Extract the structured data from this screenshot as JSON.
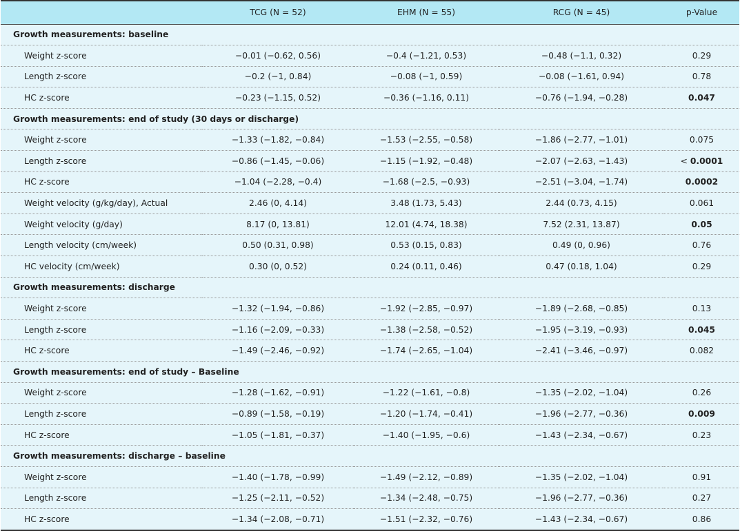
{
  "header": {
    "label": "",
    "tcg": "TCG (N = 52)",
    "ehm": "EHM (N = 55)",
    "rcg": "RCG (N = 45)",
    "p": "p-Value"
  },
  "sections": [
    {
      "title": "Growth measurements: baseline",
      "rows": [
        {
          "label": "Weight z-score",
          "tcg": "−0.01 (−0.62, 0.56)",
          "ehm": "−0.4 (−1.21, 0.53)",
          "rcg": "−0.48 (−1.1, 0.32)",
          "p": "0.29",
          "bold": false
        },
        {
          "label": "Length z-score",
          "tcg": "−0.2 (−1, 0.84)",
          "ehm": "−0.08 (−1, 0.59)",
          "rcg": "−0.08 (−1.61, 0.94)",
          "p": "0.78",
          "bold": false
        },
        {
          "label": "HC z-score",
          "tcg": "−0.23 (−1.15, 0.52)",
          "ehm": "−0.36 (−1.16, 0.11)",
          "rcg": "−0.76 (−1.94, −0.28)",
          "p": "0.047",
          "bold": true
        }
      ]
    },
    {
      "title": "Growth measurements: end of study (30 days or discharge)",
      "rows": [
        {
          "label": "Weight z-score",
          "tcg": "−1.33 (−1.82, −0.84)",
          "ehm": "−1.53 (−2.55, −0.58)",
          "rcg": "−1.86 (−2.77, −1.01)",
          "p": "0.075",
          "bold": false
        },
        {
          "label": "Length z-score",
          "tcg": "−0.86 (−1.45, −0.06)",
          "ehm": "−1.15 (−1.92, −0.48)",
          "rcg": "−2.07 (−2.63, −1.43)",
          "p_prefix": "< ",
          "p": "0.0001",
          "bold": true
        },
        {
          "label": "HC z-score",
          "tcg": "−1.04 (−2.28, −0.4)",
          "ehm": "−1.68 (−2.5, −0.93)",
          "rcg": "−2.51 (−3.04, −1.74)",
          "p": "0.0002",
          "bold": true
        },
        {
          "label": "Weight velocity (g/kg/day), Actual",
          "tcg": "2.46 (0, 4.14)",
          "ehm": "3.48 (1.73, 5.43)",
          "rcg": "2.44 (0.73, 4.15)",
          "p": "0.061",
          "bold": false
        },
        {
          "label": "Weight velocity (g/day)",
          "tcg": "8.17 (0, 13.81)",
          "ehm": "12.01 (4.74, 18.38)",
          "rcg": "7.52 (2.31, 13.87)",
          "p": "0.05",
          "bold": true
        },
        {
          "label": "Length velocity (cm/week)",
          "tcg": "0.50 (0.31, 0.98)",
          "ehm": "0.53 (0.15, 0.83)",
          "rcg": "0.49 (0, 0.96)",
          "p": "0.76",
          "bold": false
        },
        {
          "label": "HC velocity (cm/week)",
          "tcg": "0.30 (0, 0.52)",
          "ehm": "0.24 (0.11, 0.46)",
          "rcg": "0.47 (0.18, 1.04)",
          "p": "0.29",
          "bold": false
        }
      ]
    },
    {
      "title": "Growth measurements: discharge",
      "rows": [
        {
          "label": "Weight z-score",
          "tcg": "−1.32 (−1.94, −0.86)",
          "ehm": "−1.92 (−2.85, −0.97)",
          "rcg": "−1.89 (−2.68, −0.85)",
          "p": "0.13",
          "bold": false
        },
        {
          "label": "Length z-score",
          "tcg": "−1.16 (−2.09, −0.33)",
          "ehm": "−1.38 (−2.58, −0.52)",
          "rcg": "−1.95 (−3.19, −0.93)",
          "p": "0.045",
          "bold": true
        },
        {
          "label": "HC z-score",
          "tcg": "−1.49 (−2.46, −0.92)",
          "ehm": "−1.74 (−2.65, −1.04)",
          "rcg": "−2.41 (−3.46, −0.97)",
          "p": "0.082",
          "bold": false
        }
      ]
    },
    {
      "title": "Growth measurements: end of study – Baseline",
      "rows": [
        {
          "label": "Weight z-score",
          "tcg": "−1.28 (−1.62, −0.91)",
          "ehm": "−1.22 (−1.61, −0.8)",
          "rcg": "−1.35 (−2.02, −1.04)",
          "p": "0.26",
          "bold": false
        },
        {
          "label": "Length z-score",
          "tcg": "−0.89 (−1.58, −0.19)",
          "ehm": "−1.20 (−1.74, −0.41)",
          "rcg": "−1.96 (−2.77, −0.36)",
          "p": "0.009",
          "bold": true
        },
        {
          "label": "HC z-score",
          "tcg": "−1.05 (−1.81, −0.37)",
          "ehm": "−1.40 (−1.95, −0.6)",
          "rcg": "−1.43 (−2.34, −0.67)",
          "p": "0.23",
          "bold": false
        }
      ]
    },
    {
      "title": "Growth measurements: discharge – baseline",
      "rows": [
        {
          "label": "Weight z-score",
          "tcg": "−1.40 (−1.78, −0.99)",
          "ehm": "−1.49 (−2.12, −0.89)",
          "rcg": "−1.35 (−2.02, −1.04)",
          "p": "0.91",
          "bold": false
        },
        {
          "label": "Length z-score",
          "tcg": "−1.25 (−2.11, −0.52)",
          "ehm": "−1.34 (−2.48, −0.75)",
          "rcg": "−1.96 (−2.77, −0.36)",
          "p": "0.27",
          "bold": false
        },
        {
          "label": "HC z-score",
          "tcg": "−1.34 (−2.08, −0.71)",
          "ehm": "−1.51 (−2.32, −0.76)",
          "rcg": "−1.43 (−2.34, −0.67)",
          "p": "0.86",
          "bold": false
        }
      ]
    }
  ]
}
